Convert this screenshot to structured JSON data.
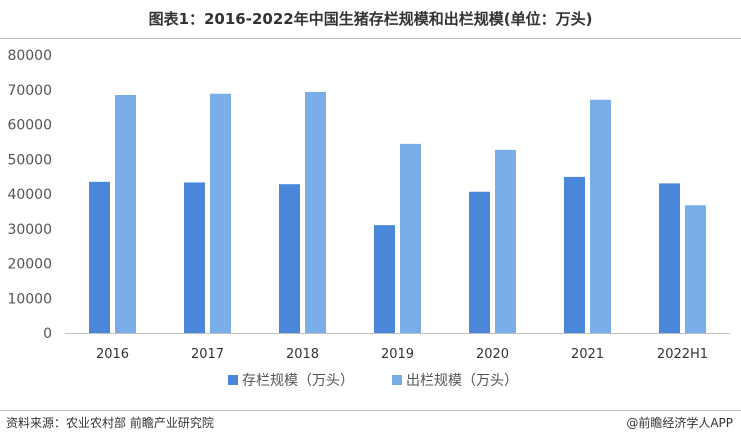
{
  "title": "图表1：2016-2022年中国生猪存栏规模和出栏规模(单位：万头)",
  "footer": {
    "source": "资料来源：农业农村部 前瞻产业研究院",
    "brand": "@前瞻经济学人APP"
  },
  "colors": {
    "series_1": "#4a86d9",
    "series_2": "#7aaee8",
    "grid": "#d9d9d9",
    "axis": "#bfbfbf"
  },
  "chart_data": {
    "type": "bar",
    "title": "图表1：2016-2022年中国生猪存栏规模和出栏规模(单位：万头)",
    "categories": [
      "2016",
      "2017",
      "2018",
      "2019",
      "2020",
      "2021",
      "2022H1"
    ],
    "series": [
      {
        "name": "存栏规模（万头）",
        "values": [
          43504,
          43325,
          42817,
          31041,
          40650,
          44922,
          43057
        ]
      },
      {
        "name": "出栏规模（万头）",
        "values": [
          68502,
          68861,
          69382,
          54419,
          52704,
          67128,
          36759
        ]
      }
    ],
    "y_ticks": [
      "0",
      "10000",
      "20000",
      "30000",
      "40000",
      "50000",
      "60000",
      "70000",
      "80000"
    ],
    "ylim": [
      0,
      80000
    ],
    "grid": false,
    "legend_position": "bottom"
  }
}
